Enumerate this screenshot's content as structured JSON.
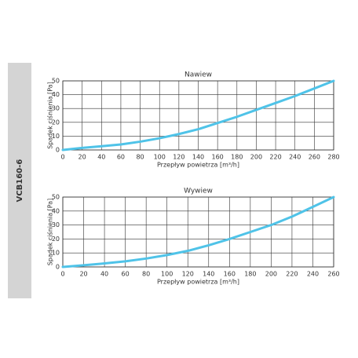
{
  "side_label": "VCB160-6",
  "chart_data": [
    {
      "type": "line",
      "title": "Nawiew",
      "xlabel": "Przepływ powietrza [m³/h]",
      "ylabel": "Spadek ciśnienia [Pa]",
      "grid": true,
      "x": [
        0,
        20,
        40,
        60,
        80,
        100,
        120,
        140,
        160,
        180,
        200,
        220,
        240,
        260,
        280
      ],
      "series": [
        {
          "name": "Nawiew",
          "color": "#4fc3e8",
          "values": [
            0,
            1.5,
            2.7,
            4,
            6,
            8.5,
            11.5,
            15,
            19.5,
            24,
            29,
            34,
            39,
            44.5,
            50
          ]
        }
      ],
      "xlim": [
        0,
        280
      ],
      "xticks": [
        0,
        20,
        40,
        60,
        80,
        100,
        120,
        140,
        160,
        180,
        200,
        220,
        240,
        260,
        280
      ],
      "ylim": [
        0,
        50
      ],
      "yticks": [
        0,
        10,
        20,
        30,
        40,
        50
      ]
    },
    {
      "type": "line",
      "title": "Wywiew",
      "xlabel": "Przepływ powietrza [m³/h]",
      "ylabel": "Spadek ciśnienia [Pa]",
      "grid": true,
      "x": [
        0,
        20,
        40,
        60,
        80,
        100,
        120,
        140,
        160,
        180,
        200,
        220,
        240,
        260
      ],
      "series": [
        {
          "name": "Wywiew",
          "color": "#4fc3e8",
          "values": [
            0,
            1.2,
            2.5,
            4,
            6,
            8.5,
            11.5,
            15.5,
            20,
            25,
            30,
            36,
            43,
            50
          ]
        }
      ],
      "xlim": [
        0,
        260
      ],
      "xticks": [
        0,
        20,
        40,
        60,
        80,
        100,
        120,
        140,
        160,
        180,
        200,
        220,
        240,
        260
      ],
      "ylim": [
        0,
        50
      ],
      "yticks": [
        0,
        10,
        20,
        30,
        40,
        50
      ]
    }
  ]
}
